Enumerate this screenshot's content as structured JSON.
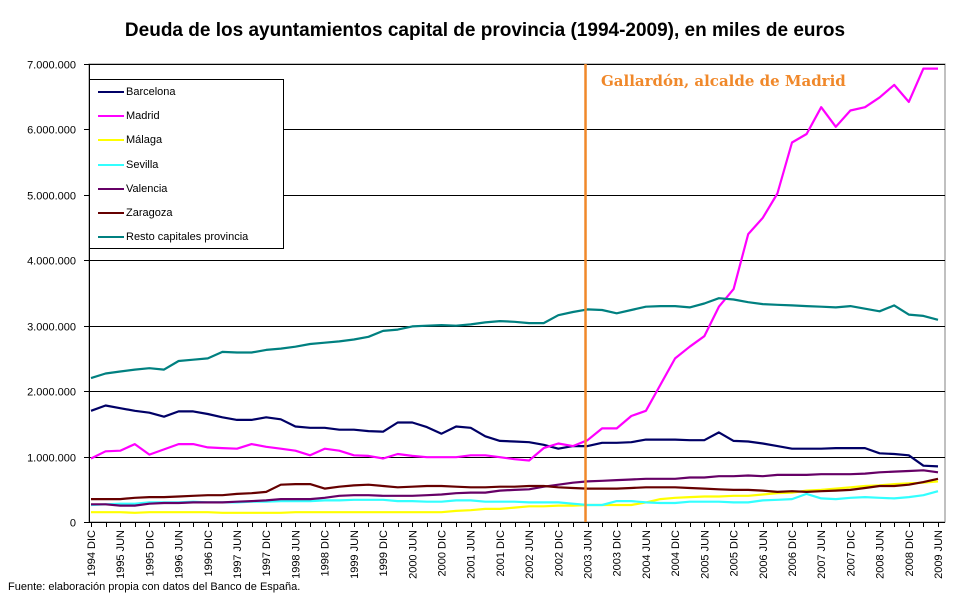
{
  "title": "Deuda de los ayuntamientos capital de provincia (1994-2009), en miles de euros",
  "source": "Fuente: elaboración propia con datos del Banco de España.",
  "annotation": {
    "text": "Gallardón, alcalde de Madrid",
    "at_label": "2003 JUN",
    "color": "#f0882a"
  },
  "chart_data": {
    "type": "line",
    "title": "Deuda de los ayuntamientos capital de provincia (1994-2009), en miles de euros",
    "xlabel": "",
    "ylabel": "",
    "ylim": [
      0,
      7000000
    ],
    "yticks": [
      0,
      1000000,
      2000000,
      3000000,
      4000000,
      5000000,
      6000000,
      7000000
    ],
    "ytick_labels": [
      "0",
      "1.000.000",
      "2.000.000",
      "3.000.000",
      "4.000.000",
      "5.000.000",
      "6.000.000",
      "7.000.000"
    ],
    "grid": "horizontal",
    "legend_position": "top-left",
    "x_tick_labels": [
      "1994 DIC",
      "1995 JUN",
      "1995 DIC",
      "1996 JUN",
      "1996 DIC",
      "1997 JUN",
      "1997 DIC",
      "1998 JUN",
      "1998 DIC",
      "1999 JUN",
      "1999 DIC",
      "2000 JUN",
      "2000 DIC",
      "2001 JUN",
      "2001 DIC",
      "2002 JUN",
      "2002 DIC",
      "2003 JUN",
      "2003 DIC",
      "2004 JUN",
      "2004 DIC",
      "2005 JUN",
      "2005 DIC",
      "2006 JUN",
      "2006 DIC",
      "2007 JUN",
      "2007 DIC",
      "2008 JUN",
      "2008 DIC",
      "2009 JUN"
    ],
    "x_note": "quarterly observations from 1994 Q4 to 2009 Q2 (59 points); labels every second quarter",
    "series": [
      {
        "name": "Barcelona",
        "color": "#000066",
        "values": [
          1700000,
          1780000,
          1740000,
          1700000,
          1670000,
          1610000,
          1690000,
          1690000,
          1650000,
          1600000,
          1560000,
          1560000,
          1600000,
          1570000,
          1460000,
          1440000,
          1440000,
          1410000,
          1410000,
          1390000,
          1380000,
          1520000,
          1520000,
          1450000,
          1350000,
          1460000,
          1440000,
          1310000,
          1240000,
          1230000,
          1220000,
          1180000,
          1120000,
          1160000,
          1160000,
          1210000,
          1210000,
          1220000,
          1260000,
          1260000,
          1260000,
          1250000,
          1250000,
          1370000,
          1240000,
          1230000,
          1200000,
          1160000,
          1120000,
          1120000,
          1120000,
          1130000,
          1130000,
          1130000,
          1050000,
          1040000,
          1020000,
          860000,
          850000
        ]
      },
      {
        "name": "Madrid",
        "color": "#ff00ff",
        "values": [
          970000,
          1080000,
          1090000,
          1190000,
          1030000,
          1110000,
          1190000,
          1190000,
          1140000,
          1130000,
          1120000,
          1190000,
          1150000,
          1120000,
          1090000,
          1020000,
          1120000,
          1090000,
          1020000,
          1010000,
          970000,
          1040000,
          1010000,
          990000,
          990000,
          990000,
          1020000,
          1020000,
          990000,
          960000,
          940000,
          1130000,
          1200000,
          1160000,
          1250000,
          1430000,
          1430000,
          1620000,
          1700000,
          2100000,
          2500000,
          2680000,
          2840000,
          3290000,
          3560000,
          4400000,
          4650000,
          5020000,
          5800000,
          5930000,
          6340000,
          6040000,
          6290000,
          6340000,
          6490000,
          6680000,
          6420000,
          6930000,
          6930000
        ]
      },
      {
        "name": "Málaga",
        "color": "#ffff00",
        "values": [
          150000,
          150000,
          150000,
          140000,
          150000,
          150000,
          150000,
          150000,
          150000,
          140000,
          140000,
          140000,
          140000,
          140000,
          150000,
          150000,
          150000,
          150000,
          150000,
          150000,
          150000,
          150000,
          150000,
          150000,
          150000,
          170000,
          180000,
          200000,
          200000,
          220000,
          240000,
          240000,
          250000,
          250000,
          260000,
          260000,
          260000,
          260000,
          300000,
          350000,
          370000,
          380000,
          390000,
          390000,
          400000,
          400000,
          420000,
          440000,
          450000,
          480000,
          490000,
          510000,
          530000,
          550000,
          560000,
          580000,
          590000,
          600000,
          620000
        ]
      },
      {
        "name": "Sevilla",
        "color": "#33ffff",
        "values": [
          260000,
          270000,
          280000,
          280000,
          300000,
          300000,
          300000,
          310000,
          300000,
          300000,
          300000,
          310000,
          310000,
          320000,
          320000,
          320000,
          330000,
          330000,
          340000,
          340000,
          340000,
          320000,
          320000,
          310000,
          310000,
          330000,
          330000,
          310000,
          310000,
          310000,
          300000,
          300000,
          300000,
          280000,
          260000,
          260000,
          320000,
          320000,
          300000,
          290000,
          290000,
          310000,
          310000,
          310000,
          300000,
          300000,
          330000,
          340000,
          350000,
          430000,
          360000,
          350000,
          370000,
          380000,
          370000,
          360000,
          380000,
          410000,
          470000
        ]
      },
      {
        "name": "Valencia",
        "color": "#660066",
        "values": [
          270000,
          270000,
          250000,
          250000,
          280000,
          290000,
          290000,
          300000,
          300000,
          300000,
          310000,
          320000,
          330000,
          350000,
          350000,
          350000,
          370000,
          400000,
          410000,
          410000,
          400000,
          400000,
          400000,
          410000,
          420000,
          440000,
          450000,
          450000,
          480000,
          490000,
          500000,
          540000,
          570000,
          600000,
          620000,
          630000,
          640000,
          650000,
          660000,
          660000,
          660000,
          680000,
          680000,
          700000,
          700000,
          710000,
          700000,
          720000,
          720000,
          720000,
          730000,
          730000,
          730000,
          740000,
          760000,
          770000,
          780000,
          790000,
          760000
        ]
      },
      {
        "name": "Zaragoza",
        "color": "#660000",
        "values": [
          350000,
          350000,
          350000,
          370000,
          380000,
          380000,
          390000,
          400000,
          410000,
          410000,
          430000,
          440000,
          460000,
          570000,
          580000,
          580000,
          510000,
          540000,
          560000,
          570000,
          550000,
          530000,
          540000,
          550000,
          550000,
          540000,
          530000,
          530000,
          540000,
          540000,
          550000,
          550000,
          530000,
          520000,
          510000,
          510000,
          510000,
          520000,
          530000,
          530000,
          530000,
          520000,
          510000,
          500000,
          490000,
          490000,
          480000,
          460000,
          470000,
          460000,
          470000,
          480000,
          490000,
          520000,
          550000,
          550000,
          570000,
          610000,
          660000
        ]
      },
      {
        "name": "Resto capitales provincia",
        "color": "#008080",
        "values": [
          2200000,
          2270000,
          2300000,
          2330000,
          2350000,
          2330000,
          2460000,
          2480000,
          2500000,
          2600000,
          2590000,
          2590000,
          2630000,
          2650000,
          2680000,
          2720000,
          2740000,
          2760000,
          2790000,
          2830000,
          2920000,
          2940000,
          2990000,
          3000000,
          3010000,
          3000000,
          3020000,
          3050000,
          3070000,
          3060000,
          3040000,
          3040000,
          3160000,
          3210000,
          3250000,
          3240000,
          3190000,
          3240000,
          3290000,
          3300000,
          3300000,
          3280000,
          3340000,
          3420000,
          3400000,
          3360000,
          3330000,
          3320000,
          3310000,
          3300000,
          3290000,
          3280000,
          3300000,
          3260000,
          3220000,
          3310000,
          3170000,
          3150000,
          3090000
        ]
      }
    ]
  }
}
